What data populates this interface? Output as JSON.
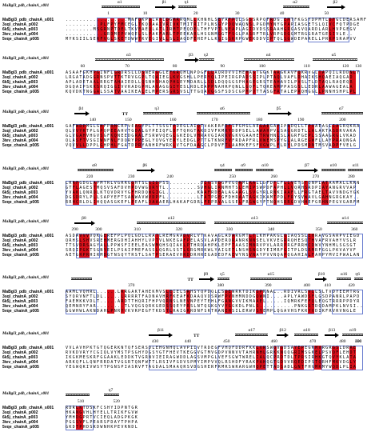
{
  "seq_names": [
    "MaBgl3_pdb_chainA_s001",
    "3sql_chainA_p002",
    "6k5j_chainA_p003",
    "3tev_chainA_p004",
    "5vqe_chainA_p005"
  ],
  "blocks": [
    {
      "ss": [
        {
          "t": "coil",
          "a": 0.12,
          "b": 0.25,
          "l": "α1"
        },
        {
          "t": "arr",
          "a": 0.3,
          "b": 0.37,
          "l": "β1"
        },
        {
          "t": "coil",
          "a": 0.38,
          "b": 0.44,
          "l": "η1"
        },
        {
          "t": "coil",
          "a": 0.73,
          "b": 0.82,
          "l": "α2"
        },
        {
          "t": "arr",
          "a": 0.88,
          "b": 0.94,
          "l": "β2"
        }
      ],
      "ticks": [
        {
          "p": 0.14,
          "v": "1"
        },
        {
          "p": 0.26,
          "v": "10"
        },
        {
          "p": 0.43,
          "v": "20"
        },
        {
          "p": 0.57,
          "v": "30"
        },
        {
          "p": 0.72,
          "v": "40"
        },
        {
          "p": 0.87,
          "v": "50"
        }
      ],
      "seqs": [
        "..................MNFQKPDLATLDGMRRQMLLKHNHLSEYAFPQLSGSSRPQFRDG.EMTFKGSYDPMTLDFGCDERSAMFA",
        "..........PLFPYFMCEGLTKQDAAIVRIVKTMITRITPLNSGYPDQWAQNSLPGDMYNYGPAPIASGETSLQIVCFQTPDGE",
        "........MSGRNPTDELTKVEAEQLATLIRMTPEQDELTHFVPTLNEAPLAGIDVDSSRAAHGRGASVQARDLARLHVPGEGV",
        "...........GRDMEPVWQELSLPAKFARLTPEEKARLHSGNMGGTFSGLPASRFTRLVRPGDGGMTRGGRATGESIVLE..",
        "MYKSIILSERFVGLSKETDWWTKVEGIVLLSLIAQDFEHEPLLKGIGSKRPGWEKDDVIPTQLSGWDEPARELLPRKPSRAPVV"
      ],
      "red": [
        [
          9,
          11
        ],
        [
          11,
          12
        ],
        [
          13,
          14
        ],
        [
          15,
          17
        ],
        [
          21,
          22
        ],
        [
          24,
          25
        ],
        [
          27,
          28
        ],
        [
          29,
          30
        ],
        [
          31,
          33
        ],
        [
          37,
          38
        ],
        [
          44,
          45
        ],
        [
          47,
          49
        ],
        [
          53,
          54
        ],
        [
          59,
          60
        ],
        [
          63,
          65
        ],
        [
          76,
          78
        ]
      ],
      "box": [
        [
          9,
          19
        ],
        [
          20,
          35
        ],
        [
          44,
          51
        ],
        [
          58,
          66
        ],
        [
          70,
          82
        ]
      ]
    },
    {
      "ss": [
        {
          "t": "coil",
          "a": 0.1,
          "b": 0.33,
          "l": "α3"
        },
        {
          "t": "arr",
          "a": 0.4,
          "b": 0.45,
          "l": "β3"
        },
        {
          "t": "coil",
          "a": 0.45,
          "b": 0.5,
          "l": "η2"
        },
        {
          "t": "coil",
          "a": 0.6,
          "b": 0.77,
          "l": "α4"
        },
        {
          "t": "coil",
          "a": 0.83,
          "b": 0.98,
          "l": "α5"
        }
      ],
      "ticks": [
        {
          "p": 0.05,
          "v": "60"
        },
        {
          "p": 0.2,
          "v": "70"
        },
        {
          "p": 0.36,
          "v": "80"
        },
        {
          "p": 0.52,
          "v": "90"
        },
        {
          "p": 0.65,
          "v": "100"
        },
        {
          "p": 0.8,
          "v": "110"
        },
        {
          "p": 0.93,
          "v": "120"
        },
        {
          "p": 1.0,
          "v": "130"
        }
      ],
      "seqs": [
        "ASAAFGKHPGINFLGRDRSLLDSNERGGLEFKRQHLNPDGFLLAQRDVVIHEMAGTGGKTARGKAVFQKRVGLTAPQILRDDNLY",
        "LRGATADGGRNSPVTTKTRVGGPLTQAIEGLKVGSHLLPERYQLIPEIRGPADSSIPLPTAQLVAFLDHAIKSHQAEIAQGAD",
        "APLADETAALRRGTAHAIEDLLQSNHSHAQPHGEYMDARLLSDLDQQGGSPHAGEGRSTEAHAVILPVSLTLDTAQLRAQEQR",
        "DGQAIPSKKSRQIGGIVVRADGPHLAVAGGGIYESLRDLEAPPNAHRPQNLLGQFLTQREAMPPASGSLLEDRLAAWAGEALA",
        "KQVDKTNGGALSSATVAAIKEALELMPERSGRSVSLTTGQAVGGSFSDSCGPMPVTTASGFRTALEPRQHGGLLPNNHSHPLPL"
      ],
      "red": [
        [
          8,
          10
        ],
        [
          14,
          16
        ],
        [
          22,
          23
        ],
        [
          26,
          27
        ],
        [
          30,
          33
        ],
        [
          41,
          43
        ],
        [
          52,
          53
        ],
        [
          54,
          55
        ],
        [
          60,
          62
        ],
        [
          67,
          68
        ],
        [
          73,
          75
        ],
        [
          82,
          84
        ]
      ],
      "box": [
        [
          5,
          36
        ],
        [
          40,
          58
        ],
        [
          62,
          70
        ],
        [
          72,
          85
        ]
      ]
    },
    {
      "ss": [
        {
          "t": "arr",
          "a": 0.03,
          "b": 0.08,
          "l": "β4"
        },
        {
          "tt": 1,
          "a": 0.19,
          "l": "TT"
        },
        {
          "t": "coil",
          "a": 0.26,
          "b": 0.36,
          "l": "η3"
        },
        {
          "t": "coil",
          "a": 0.44,
          "b": 0.62,
          "l": "α6"
        },
        {
          "t": "arr",
          "a": 0.68,
          "b": 0.76,
          "l": "β5"
        },
        {
          "t": "coil",
          "a": 0.86,
          "b": 1.0,
          "l": "α7"
        }
      ],
      "ticks": [
        {
          "p": 0.08,
          "v": "140"
        },
        {
          "p": 0.2,
          "v": "150"
        },
        {
          "p": 0.35,
          "v": "160"
        },
        {
          "p": 0.49,
          "v": "170"
        },
        {
          "p": 0.64,
          "v": "180"
        },
        {
          "p": 0.78,
          "v": "190"
        },
        {
          "p": 0.92,
          "v": "200"
        }
      ],
      "seqs": [
        "GAFWDPMGLGHFPRMCRPVEAGYPLTTSSGTPDEGLAIQTVAKERFEFSPGHGLAEGAEGAPIPRDQLLTPVAEASLIAGRQKRA",
        "QLVVYKTPLGPQPEEAHVTGDALGYPEIQFLDFTQHGTAKDIVFKMKYDDPSELLAWAHPVLSAGGRDTLLALAKTASDRVAKA",
        "GLVGAHVHGVSGFKQNEEDGRALFSRWVQEGLGKEDLVHRAVGIARKVGKVGAAHETRWHNLSLAGRFGEPLSSAAGRGLVKAD",
        "QLASFTVSGIWNFNLFDQRYPPEGLYQVGYERYLEDGLPTTGTKNRFVFRDAPFRLVWEMSPYGLALRGEGWFLLAYPRAQNGA",
        "VQVVLLDPPLGHPHLFGATDPRYANHRFWRKLVTGFDAAGCLPDVFTLAAMKEFSFVGWPLFLRYLPDSMDNTMSVADPFVELG"
      ],
      "red": [
        [
          3,
          6
        ],
        [
          10,
          11
        ],
        [
          13,
          15
        ],
        [
          20,
          22
        ],
        [
          31,
          32
        ],
        [
          38,
          39
        ],
        [
          46,
          48
        ],
        [
          56,
          59
        ],
        [
          61,
          62
        ],
        [
          64,
          65
        ],
        [
          70,
          72
        ],
        [
          77,
          79
        ]
      ],
      "box": [
        [
          2,
          18
        ],
        [
          22,
          40
        ],
        [
          46,
          62
        ],
        [
          64,
          74
        ],
        [
          76,
          85
        ]
      ]
    },
    {
      "ss": [
        {
          "t": "coil",
          "a": 0.04,
          "b": 0.16,
          "l": "α8"
        },
        {
          "t": "arr",
          "a": 0.24,
          "b": 0.3,
          "l": "β6"
        },
        {
          "t": "coil",
          "a": 0.5,
          "b": 0.56,
          "l": "η4"
        },
        {
          "t": "coil",
          "a": 0.57,
          "b": 0.63,
          "l": "α9"
        },
        {
          "t": "coil",
          "a": 0.64,
          "b": 0.7,
          "l": "α10"
        },
        {
          "t": "arr",
          "a": 0.78,
          "b": 0.85,
          "l": "β7"
        },
        {
          "t": "coil",
          "a": 0.86,
          "b": 0.94,
          "l": "α10"
        },
        {
          "t": "coil",
          "a": 0.95,
          "b": 1.0,
          "l": "α11"
        }
      ],
      "ticks": [
        {
          "p": 0.07,
          "v": "220"
        },
        {
          "p": 0.21,
          "v": "230"
        },
        {
          "p": 0.34,
          "v": "240"
        },
        {
          "p": 0.55,
          "v": "250"
        },
        {
          "p": 0.69,
          "v": "260"
        },
        {
          "p": 0.83,
          "v": "270"
        },
        {
          "p": 0.95,
          "v": "280"
        }
      ],
      "seqs": [
        "LRRFGDGLAPMTRLVGRRGGHTSLGIDPSS.........DIVSVDGPVGQRMLRALLDFDFLFLLVETSTQNPLATAAMALLKKN",
        "GTFLAGESTMQSVSAFDVHPDVWGQRYTL.........SVHGLIRNMHTSLEMIPSWPDFAPHLLVQRHSRDPIAYANGRVVAP",
        "YVAKLQNRDLKTQVDRVYGFHRDQWGIGL.........KAAFRDEALAGAAGLSVGYRLRNKIAAFLLFRGTAELTAVVNDGYGK",
        "DGSDRYLPLLSAPYEFTSANWAVWVDPFL.........LTATPGEGFDHRAATAGKIKAMTPDLFRYSVWAVLGAHNGRGKAY..",
        "RRHCRLDLIHQQASGKEFLPEAFLDAAAERLHAKAFGDRLFEPRVALGSELFRGWGYFTNQHSRRGDVHHEFGRHNPEGVGARFM"
      ],
      "red": [
        [
          2,
          4
        ],
        [
          8,
          9
        ],
        [
          19,
          20
        ],
        [
          24,
          27
        ],
        [
          40,
          42
        ],
        [
          44,
          45
        ],
        [
          50,
          51
        ],
        [
          53,
          55
        ],
        [
          60,
          61
        ],
        [
          63,
          66
        ],
        [
          69,
          70
        ],
        [
          74,
          76
        ]
      ],
      "box": [
        [
          0,
          30
        ],
        [
          39,
          57
        ],
        [
          58,
          68
        ],
        [
          70,
          84
        ]
      ]
    },
    {
      "ss": [
        {
          "t": "arr",
          "a": 0.03,
          "b": 0.1,
          "l": "β8"
        },
        {
          "t": "coil",
          "a": 0.24,
          "b": 0.47,
          "l": "α12"
        },
        {
          "t": "coil",
          "a": 0.5,
          "b": 0.77,
          "l": "α13"
        },
        {
          "t": "coil",
          "a": 0.88,
          "b": 1.0,
          "l": "α14"
        }
      ],
      "ticks": [
        {
          "p": 0.02,
          "v": "290"
        },
        {
          "p": 0.1,
          "v": "300"
        },
        {
          "p": 0.23,
          "v": "310"
        },
        {
          "p": 0.37,
          "v": "320"
        },
        {
          "p": 0.54,
          "v": "330"
        },
        {
          "p": 0.68,
          "v": "340"
        },
        {
          "p": 0.84,
          "v": "350"
        },
        {
          "p": 0.96,
          "v": "360"
        }
      ],
      "seqs": [
        "ASDAVVVVQKGEREFPLPQLGDLLRATLREMGAADVRLVTKAVAGLADARGMTLTLKHPAKGLQIAQSSLEHRAVGSARPVIEGD",
        "QRHSLSHVSREHMERGDHIAHHYLVPTVLNKEGAFPELASVLAPDERQRANRKNNSELVKVEGRRQHESQTHVAFRVAHYVSLR",
        "TTSVDRSAGYALLPPWSFIEELEASWMQHSQIAKLPTHRDAHPKLEPFTAASIMNRVPVLARRPRGFRRHCDWVYNHMLSGSGT",
        "SRQIPGKTSGNYEILPSAIPMEFASSLQGRLSSTLGRGMRKWLYAIGETLNSHSNGDYEIMRFGITPLDSRMRFGGLPKVAYVF",
        "AETGRPRHIRMDGTNSQYTRSTLSATPSERAEVHRDDRHREGADEDFAEWYNSVNAYPVVNQAPQGAHIALFAHPYMVIPWALAN"
      ],
      "red": [
        [
          4,
          7
        ],
        [
          11,
          12
        ],
        [
          26,
          27
        ],
        [
          34,
          36
        ],
        [
          48,
          49
        ],
        [
          53,
          55
        ],
        [
          63,
          64
        ],
        [
          70,
          72
        ]
      ],
      "box": [
        [
          3,
          10
        ],
        [
          12,
          40
        ],
        [
          44,
          70
        ],
        [
          74,
          86
        ]
      ]
    },
    {
      "ss": [
        {
          "t": "coil",
          "a": 0.02,
          "b": 0.09,
          "l": ""
        },
        {
          "tt": 1,
          "a": 0.41,
          "l": "TT"
        },
        {
          "t": "arr",
          "a": 0.45,
          "b": 0.5,
          "l": "β9"
        },
        {
          "t": "coil",
          "a": 0.51,
          "b": 0.55,
          "l": "η5"
        },
        {
          "t": "coil",
          "a": 0.62,
          "b": 0.76,
          "l": "α15"
        },
        {
          "t": "arr",
          "a": 0.84,
          "b": 0.88,
          "l": "β10"
        },
        {
          "t": "coil",
          "a": 0.91,
          "b": 0.96,
          "l": "α16"
        },
        {
          "t": "coil",
          "a": 0.97,
          "b": 1.0,
          "l": "η6"
        }
      ],
      "ticks": [
        {
          "p": 0.21,
          "v": "370"
        },
        {
          "p": 0.51,
          "v": "380"
        },
        {
          "p": 0.67,
          "v": "390"
        },
        {
          "p": 0.8,
          "v": "400"
        },
        {
          "p": 0.87,
          "v": "410"
        },
        {
          "p": 0.95,
          "v": "420"
        }
      ],
      "seqs": [
        "AAMLVQHRL......LRRGAKTAHEKMVSLEIELSRHSYQPDQLLSDEWRKTDIKSPKNAL..RDIVRLSVLLSLTVDYEEMTRG",
        "SYQRVNFTLDL.....LRRRRTFADNAVHRFKEAFKDAAQVDSRWFPVNHMNDDGQWNI....APLYAWDSFLGSDPANRLPAPD",
        "FAEMKKVDLT.....ARDTTHQRIFHPVQRNSLNEVNPEYTEHLFGANGVVIKMAAEL.....IQMRKFEFQLEQGTRRRPPDYR",
        "QEMNRYFAR........TLVQGSQRKGEDSSQEYPRSLNTQGKGYVYGGKDLPNLS..........PNKGSTDQDAMPKLNVSI..",
        "GGWHWLAKNDAHLPNRYVKVRPEGFTKDSTLRAIGRRDNFSRTRANEHSILERWVSYEMPLQGAVHSFKRYVDIKFRVRVNGLE"
      ],
      "red": [
        [
          12,
          14
        ],
        [
          16,
          17
        ],
        [
          29,
          31
        ],
        [
          35,
          36
        ],
        [
          46,
          48
        ],
        [
          55,
          57
        ],
        [
          70,
          72
        ]
      ],
      "box": [
        [
          0,
          9
        ],
        [
          30,
          42
        ],
        [
          44,
          58
        ],
        [
          60,
          74
        ],
        [
          77,
          86
        ]
      ]
    },
    {
      "ss": [
        {
          "t": "arr",
          "a": 0.28,
          "b": 0.36,
          "l": "β11"
        },
        {
          "tt": 1,
          "a": 0.43,
          "l": "TT"
        },
        {
          "t": "coil",
          "a": 0.57,
          "b": 0.68,
          "l": "α17"
        },
        {
          "t": "arr",
          "a": 0.71,
          "b": 0.75,
          "l": "β12"
        },
        {
          "t": "coil",
          "a": 0.77,
          "b": 0.85,
          "l": "α18"
        },
        {
          "t": "arr",
          "a": 0.87,
          "b": 0.92,
          "l": "β13"
        },
        {
          "t": "coil",
          "a": 0.93,
          "b": 1.0,
          "l": "α19"
        }
      ],
      "ticks": [
        {
          "p": 0.29,
          "v": "430"
        },
        {
          "p": 0.4,
          "v": "440"
        },
        {
          "p": 0.53,
          "v": "450"
        },
        {
          "p": 0.69,
          "v": "460"
        },
        {
          "p": 0.82,
          "v": "470"
        },
        {
          "p": 0.92,
          "v": "480"
        },
        {
          "p": 0.98,
          "v": "490"
        },
        {
          "p": 1.0,
          "v": "500"
        }
      ],
      "seqs": [
        "VVLAVHPKTGTQGERKNTQFSERSDLEHGNHQLAVPIIVTRDEGFVHQFDDRFKKLVRSWQVGDSAYEPEGKMVRGRGSLDRRE",
        "RVKDVRYYCGIQLVYMSTPSGHYDGSYGTFHEVTKEGGVGTMVGDPVNNVVTAHRNHLGRKKNQQGRIMSGKELPSVQFLEHDT",
        "IKGKMESKRFGGAAKLEDDKTVGRNVIEIRAGWDDLAGSVMPGLVEFSGWTWRELIALQCPRDTDLTPRSIRHKGTQVYKLATA",
        "ARKQFLLQNFRRDATVGGRTQNFWTTLRSIVFGDVSPMYIMPVVQLRSHDFYRAKPAHQGTGDVVRQEDIPSTQRHFMKVDGLY",
        "YEGWQKIVWSYTPGNSPIASRVFTAGDALSMAAQRSVDGSHERFRMRSWRARGWHQPETTADSADLGNTFHVMKMYWQDLPLIA"
      ],
      "red": [
        [
          55,
          58
        ],
        [
          60,
          61
        ],
        [
          62,
          63
        ],
        [
          66,
          69
        ],
        [
          72,
          74
        ],
        [
          77,
          79
        ],
        [
          82,
          84
        ]
      ],
      "box": [
        [
          24,
          38
        ],
        [
          44,
          58
        ],
        [
          60,
          72
        ],
        [
          74,
          86
        ]
      ]
    },
    {
      "ss": [
        {
          "t": "coil",
          "a": 0.0,
          "b": 0.08,
          "l": ""
        },
        {
          "t": "coil",
          "a": 0.13,
          "b": 0.18,
          "l": "η7"
        }
      ],
      "ticks": [
        {
          "p": 0.04,
          "v": "510"
        },
        {
          "p": 0.16,
          "v": "520"
        }
      ],
      "seqs": [
        "RDRLKTDSKFCSHYIDPNTGR",
        "HKANGVHLHYELLTRIKFGVW",
        "YMHDGPRTVCIEQLADGPKGK",
        "PGGSVFLPEARSFDAYTPHPA",
        "GKDTPHDSKDWNHKPEVRNDL"
      ],
      "red": [
        [
          3,
          5
        ]
      ],
      "box": [
        [
          0,
          8
        ]
      ]
    }
  ]
}
